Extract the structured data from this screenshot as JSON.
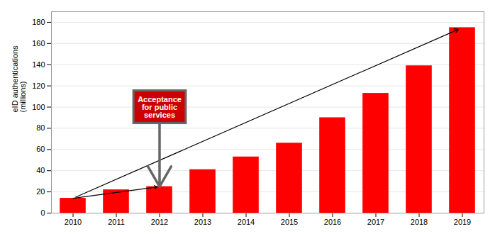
{
  "chart_data": {
    "type": "bar",
    "categories": [
      "2010",
      "2011",
      "2012",
      "2013",
      "2014",
      "2015",
      "2016",
      "2017",
      "2018",
      "2019"
    ],
    "values": [
      14,
      22,
      25,
      41,
      53,
      66,
      90,
      113,
      139,
      175
    ],
    "color": "#FF0000",
    "ylabel": "eID authentications\n(millions)",
    "ylim": [
      0,
      190
    ],
    "yticks": [
      0,
      20,
      40,
      60,
      80,
      100,
      120,
      140,
      160,
      180
    ],
    "grid": true,
    "annotations": [
      {
        "text": "Acceptance\nfor public\nservices",
        "x": "2012",
        "y": 100,
        "color": "#FFFFFF",
        "background": "#CC0000",
        "edge_color": "#666666"
      }
    ]
  }
}
